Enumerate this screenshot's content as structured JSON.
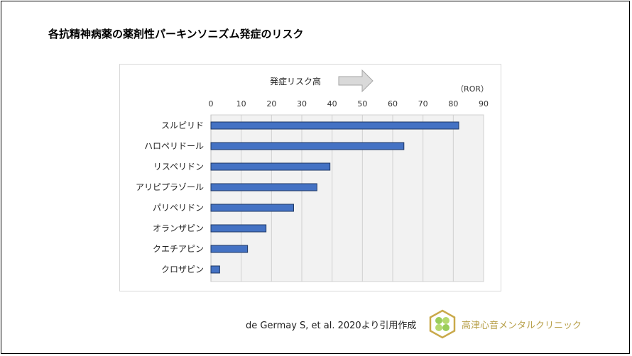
{
  "title": "各抗精神病薬の薬剤性パーキンソニズム発症のリスク",
  "citation": "de Germay S, et al. 2020より引用作成",
  "clinic_name": "高津心音メンタルクリニック",
  "chart_data": {
    "type": "bar",
    "orientation": "horizontal",
    "categories": [
      "スルピリド",
      "ハロペリドール",
      "リスペリドン",
      "アリピプラゾール",
      "パリペリドン",
      "オランザピン",
      "クエチアピン",
      "クロザピン"
    ],
    "values": [
      81.8,
      63.7,
      39.3,
      35.0,
      27.3,
      18.2,
      12.1,
      2.9
    ],
    "unit_label": "（ROR）",
    "annotation": "発症リスク高",
    "xlim": [
      0,
      90
    ],
    "ticks": [
      0,
      10,
      20,
      30,
      40,
      50,
      60,
      70,
      80,
      90
    ],
    "axis_position": "top",
    "grid": true,
    "bar_color": "#4472c4",
    "bar_edge_color": "#1f3864",
    "plot_background": "#f2f2f2"
  }
}
